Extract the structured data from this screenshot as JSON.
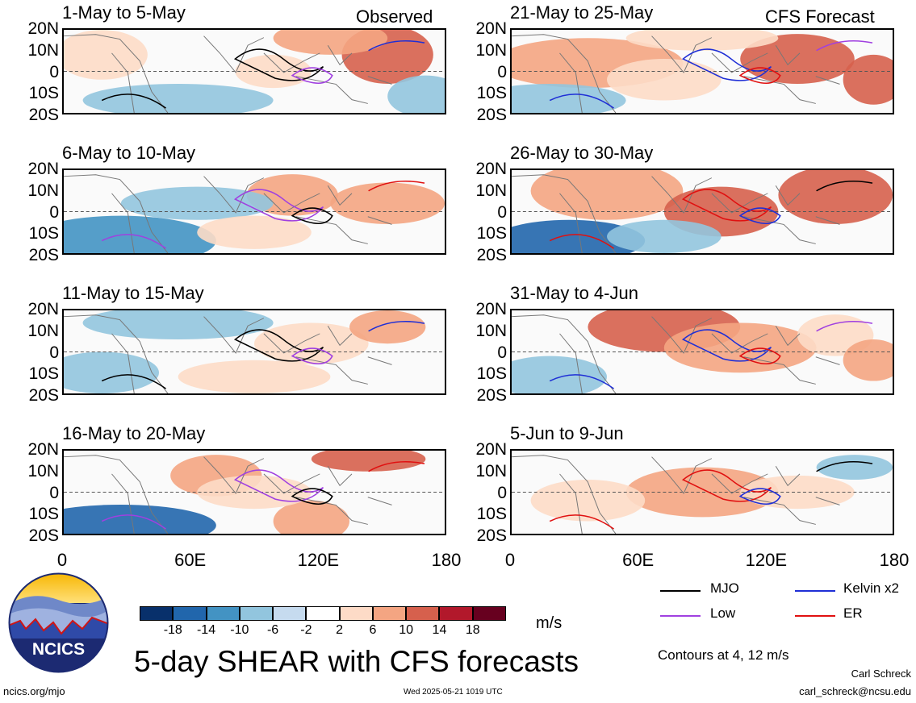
{
  "title": "5-day SHEAR with CFS forecasts",
  "observed_label": "Observed",
  "forecast_label": "CFS Forecast",
  "lat_labels": [
    "20N",
    "10N",
    "0",
    "10S",
    "20S"
  ],
  "lon_labels": [
    "0",
    "60E",
    "120E",
    "180"
  ],
  "panels": [
    {
      "period": "1-May to 5-May"
    },
    {
      "period": "21-May to 25-May"
    },
    {
      "period": "6-May to 10-May"
    },
    {
      "period": "26-May to 30-May"
    },
    {
      "period": "11-May to 15-May"
    },
    {
      "period": "31-May to 4-Jun"
    },
    {
      "period": "16-May to 20-May"
    },
    {
      "period": "5-Jun to 9-Jun"
    }
  ],
  "colorbar": {
    "ticks": [
      "-18",
      "-14",
      "-10",
      "-6",
      "-2",
      "2",
      "6",
      "10",
      "14",
      "18"
    ],
    "colors": [
      "#08306b",
      "#2166ac",
      "#4393c3",
      "#92c5de",
      "#c6dbef",
      "#ffffff",
      "#fddbc7",
      "#f4a582",
      "#d6604d",
      "#b2182b",
      "#67001f"
    ],
    "unit": "m/s"
  },
  "legend": {
    "items": [
      {
        "label": "MJO",
        "color": "#000000"
      },
      {
        "label": "Kelvin x2",
        "color": "#1f2fd6"
      },
      {
        "label": "Low",
        "color": "#a040e0"
      },
      {
        "label": "ER",
        "color": "#e01010"
      }
    ],
    "contours_note": "Contours at 4, 12 m/s"
  },
  "logo_text": "NCICS",
  "footer": {
    "url": "ncics.org/mjo",
    "timestamp": "Wed 2025-05-21 1019 UTC",
    "author": "Carl Schreck",
    "email": "carl_schreck@ncsu.edu"
  }
}
